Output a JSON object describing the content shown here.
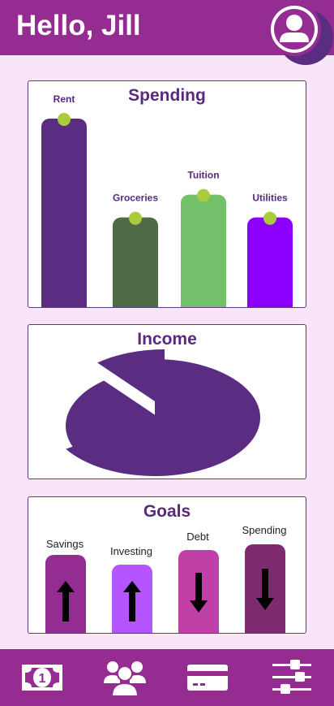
{
  "header": {
    "greeting": "Hello, Jill"
  },
  "spending": {
    "title": "Spending",
    "chart_data": {
      "type": "bar",
      "categories": [
        "Rent",
        "Groceries",
        "Tuition",
        "Utilities"
      ],
      "values": [
        100,
        48,
        60,
        48
      ],
      "colors": [
        "#5a2d82",
        "#4f6b47",
        "#73c06b",
        "#8c00ff"
      ],
      "marker_color": "#a8cc3c"
    }
  },
  "income": {
    "title": "Income",
    "chart_data": {
      "type": "pie",
      "values": [
        66,
        23,
        11
      ],
      "color": "#5a2d82"
    }
  },
  "goals": {
    "title": "Goals",
    "items": [
      {
        "label": "Savings",
        "direction": "up",
        "color": "#942c92"
      },
      {
        "label": "Investing",
        "direction": "up",
        "color": "#b455ff"
      },
      {
        "label": "Debt",
        "direction": "down",
        "color": "#c040a8"
      },
      {
        "label": "Spending",
        "direction": "down",
        "color": "#7d2a6e"
      }
    ]
  },
  "nav": [
    {
      "icon": "money-icon"
    },
    {
      "icon": "users-icon"
    },
    {
      "icon": "credit-card-icon"
    },
    {
      "icon": "sliders-icon"
    }
  ]
}
